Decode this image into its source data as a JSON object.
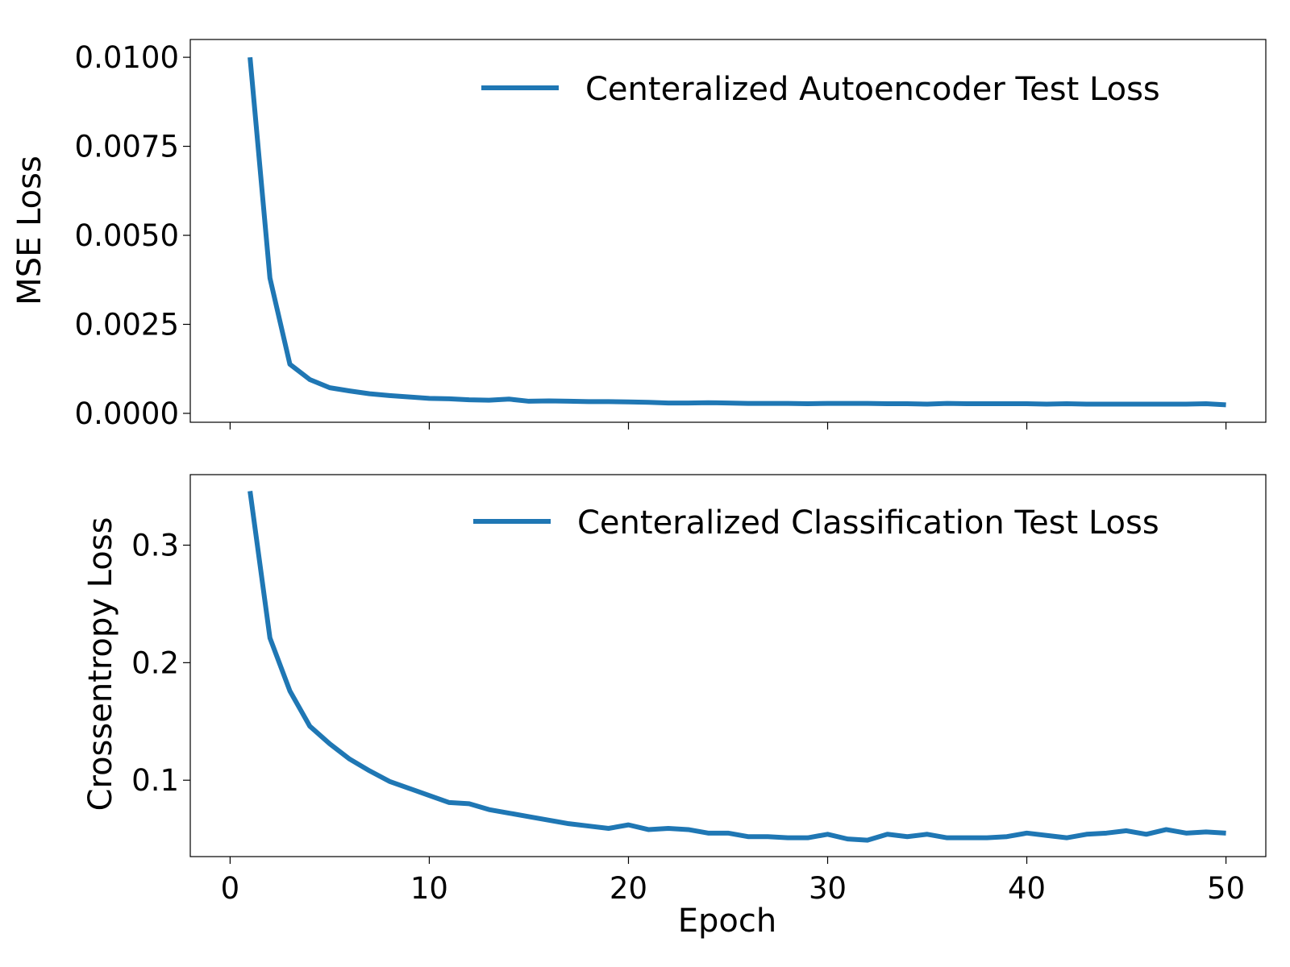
{
  "colors": {
    "series": "#1f77b4",
    "axes": "#000000",
    "background": "#ffffff"
  },
  "chart_data": [
    {
      "type": "line",
      "title": "",
      "xlabel": "",
      "ylabel": "MSE Loss",
      "xlim": [
        -2,
        52
      ],
      "ylim": [
        -0.00025,
        0.0105
      ],
      "xticks": [
        0,
        10,
        20,
        30,
        40,
        50
      ],
      "xtick_labels_visible": false,
      "yticks": [
        0.0,
        0.0025,
        0.005,
        0.0075,
        0.01
      ],
      "ytick_labels": [
        "0.0000",
        "0.0025",
        "0.0050",
        "0.0075",
        "0.0100"
      ],
      "grid": false,
      "legend_position": "top-right",
      "series": [
        {
          "name": "Centeralized Autoencoder Test Loss",
          "x": [
            1,
            2,
            3,
            4,
            5,
            6,
            7,
            8,
            9,
            10,
            11,
            12,
            13,
            14,
            15,
            16,
            17,
            18,
            19,
            20,
            21,
            22,
            23,
            24,
            25,
            26,
            27,
            28,
            29,
            30,
            31,
            32,
            33,
            34,
            35,
            36,
            37,
            38,
            39,
            40,
            41,
            42,
            43,
            44,
            45,
            46,
            47,
            48,
            49,
            50
          ],
          "values": [
            0.01,
            0.0038,
            0.00138,
            0.00095,
            0.00072,
            0.00063,
            0.00055,
            0.0005,
            0.00046,
            0.00042,
            0.00041,
            0.00038,
            0.00037,
            0.0004,
            0.00034,
            0.00035,
            0.00034,
            0.00033,
            0.00033,
            0.00032,
            0.00031,
            0.00029,
            0.00029,
            0.0003,
            0.00029,
            0.00028,
            0.00028,
            0.00028,
            0.00027,
            0.00028,
            0.00028,
            0.00028,
            0.00027,
            0.00027,
            0.00026,
            0.00028,
            0.00027,
            0.00027,
            0.00027,
            0.00027,
            0.00026,
            0.00027,
            0.00026,
            0.00026,
            0.00026,
            0.00026,
            0.00026,
            0.00026,
            0.00027,
            0.00024
          ]
        }
      ]
    },
    {
      "type": "line",
      "title": "",
      "xlabel": "Epoch",
      "ylabel": "Crossentropy Loss",
      "xlim": [
        -2,
        52
      ],
      "ylim": [
        0.035,
        0.36
      ],
      "xticks": [
        0,
        10,
        20,
        30,
        40,
        50
      ],
      "xtick_labels": [
        "0",
        "10",
        "20",
        "30",
        "40",
        "50"
      ],
      "yticks": [
        0.1,
        0.2,
        0.3
      ],
      "ytick_labels": [
        "0.1",
        "0.2",
        "0.3"
      ],
      "grid": false,
      "legend_position": "top-right",
      "series": [
        {
          "name": "Centeralized Classification Test Loss",
          "x": [
            1,
            2,
            3,
            4,
            5,
            6,
            7,
            8,
            9,
            10,
            11,
            12,
            13,
            14,
            15,
            16,
            17,
            18,
            19,
            20,
            21,
            22,
            23,
            24,
            25,
            26,
            27,
            28,
            29,
            30,
            31,
            32,
            33,
            34,
            35,
            36,
            37,
            38,
            39,
            40,
            41,
            42,
            43,
            44,
            45,
            46,
            47,
            48,
            49,
            50
          ],
          "values": [
            0.346,
            0.221,
            0.176,
            0.146,
            0.131,
            0.118,
            0.108,
            0.099,
            0.093,
            0.087,
            0.081,
            0.08,
            0.075,
            0.072,
            0.069,
            0.066,
            0.063,
            0.061,
            0.059,
            0.062,
            0.058,
            0.059,
            0.058,
            0.055,
            0.055,
            0.052,
            0.052,
            0.051,
            0.051,
            0.054,
            0.05,
            0.049,
            0.054,
            0.052,
            0.054,
            0.051,
            0.051,
            0.051,
            0.052,
            0.055,
            0.053,
            0.051,
            0.054,
            0.055,
            0.057,
            0.054,
            0.058,
            0.055,
            0.056,
            0.055
          ]
        }
      ]
    }
  ]
}
